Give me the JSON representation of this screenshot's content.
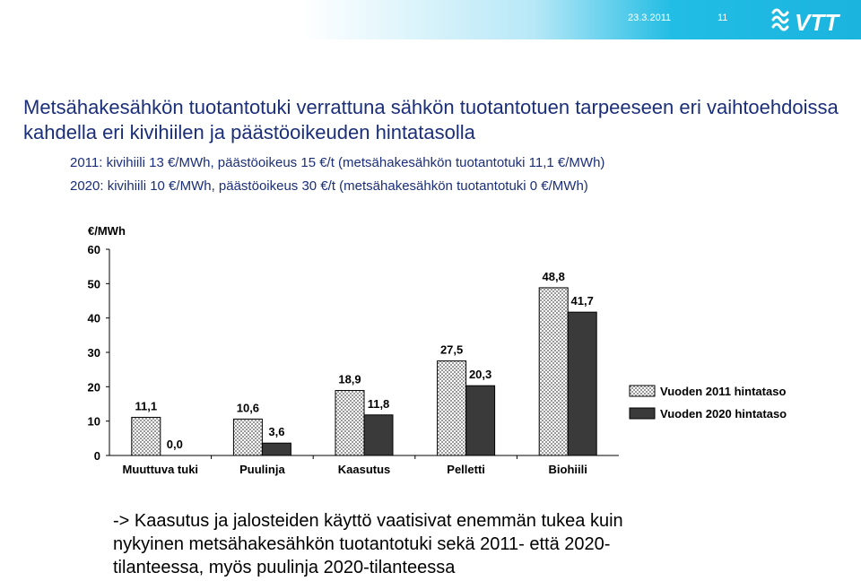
{
  "header": {
    "date": "23.3.2011",
    "page_number": "11",
    "logo_text": "VTT"
  },
  "title": "Metsähakesähkön tuotantotuki verrattuna sähkön tuotantotuen tarpeeseen eri vaihtoehdoissa kahdella eri kivihiilen ja päästöoikeuden hintatasolla",
  "subtitles": [
    "2011: kivihiili 13 €/MWh, päästöoikeus 15 €/t (metsähakesähkön tuotantotuki 11,1 €/MWh)",
    "2020: kivihiili 10 €/MWh, päästöoikeus 30 €/t (metsähakesähkön tuotantotuki 0 €/MWh)"
  ],
  "chart_data": {
    "type": "bar",
    "ylabel": "€/MWh",
    "ylim": [
      0,
      60
    ],
    "yticks": [
      0,
      10,
      20,
      30,
      40,
      50,
      60
    ],
    "grid": false,
    "legend_position": "right",
    "categories": [
      "Muuttuva tuki",
      "Puulinja",
      "Kaasutus",
      "Pelletti",
      "Biohiili"
    ],
    "series": [
      {
        "name": "Vuoden 2011 hintataso",
        "values": [
          11.1,
          10.6,
          18.9,
          27.5,
          48.8
        ],
        "labels": [
          "11,1",
          "10,6",
          "18,9",
          "27,5",
          "48,8"
        ],
        "fill": "checkered",
        "color": "#ffffff"
      },
      {
        "name": "Vuoden 2020 hintataso",
        "values": [
          0.0,
          3.6,
          11.8,
          20.3,
          41.7
        ],
        "labels": [
          "0,0",
          "3,6",
          "11,8",
          "20,3",
          "41,7"
        ],
        "fill": "solid",
        "color": "#3a3a3a"
      }
    ]
  },
  "conclusion": [
    "-> Kaasutus ja jalosteiden käyttö vaatisivat enemmän tukea kuin",
    "nykyinen metsähakesähkön tuotantotuki sekä 2011- että 2020-",
    "tilanteessa, myös puulinja 2020-tilanteessa"
  ]
}
